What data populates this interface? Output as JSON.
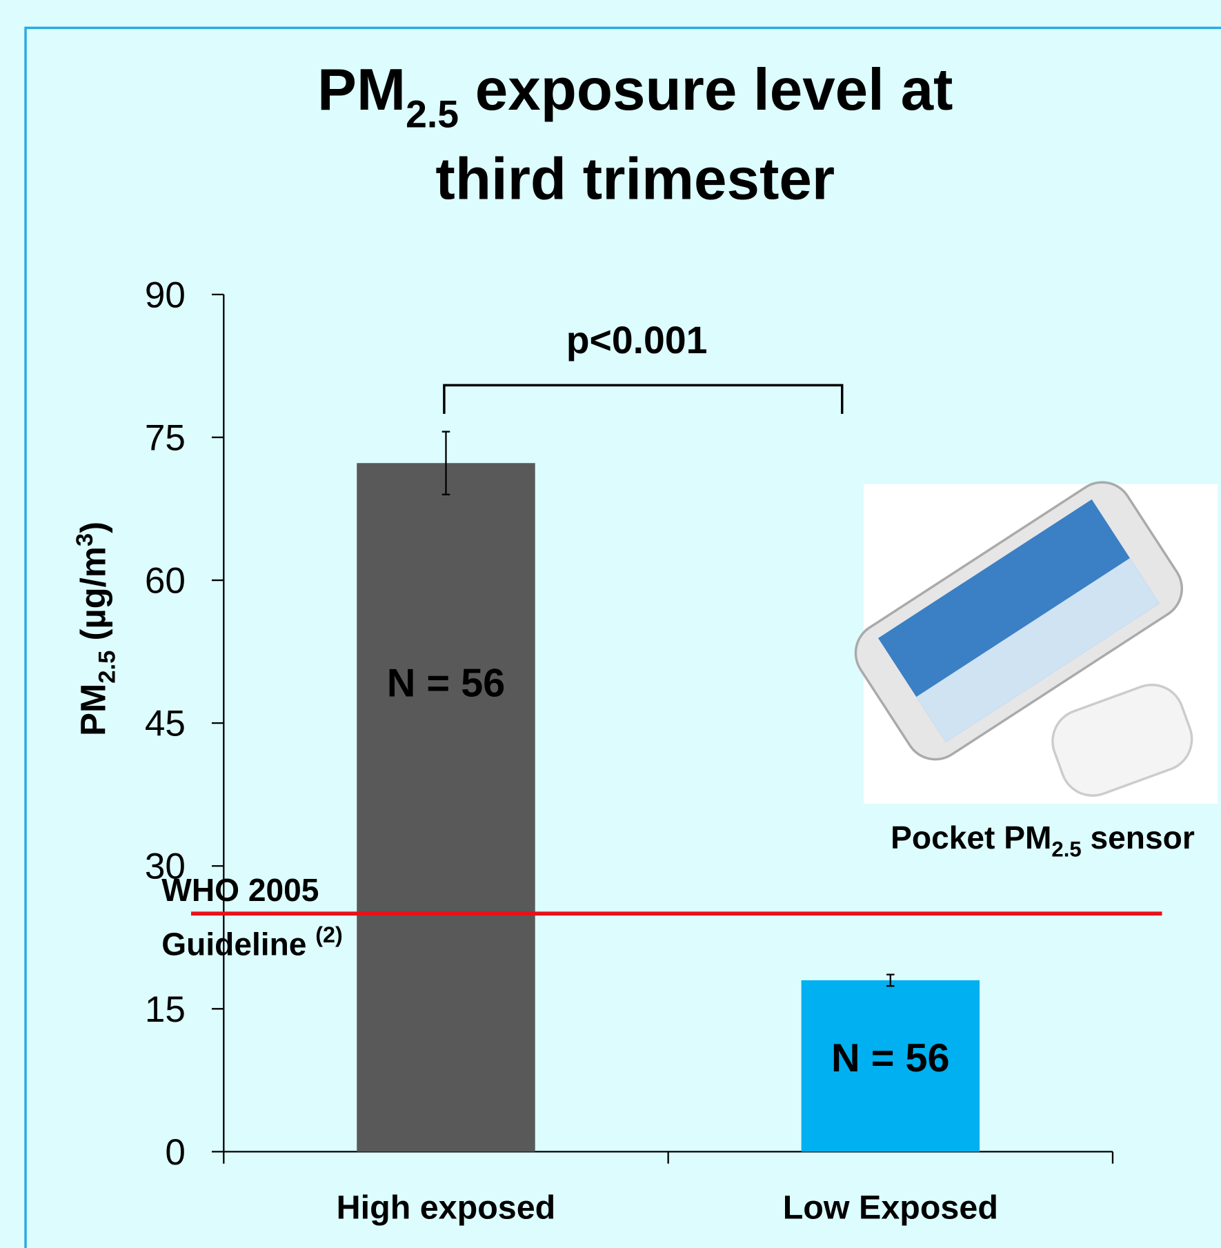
{
  "chart_data": {
    "type": "bar",
    "title": {
      "line1_main": "PM",
      "line1_sub": "2.5",
      "line1_rest": " exposure level at",
      "line2": "third trimester"
    },
    "y_label": {
      "main": "PM",
      "sub": "2.5",
      "rest": " (µg/m",
      "sup": "3",
      "end": ")"
    },
    "categories": [
      "High exposed",
      "Low Exposed"
    ],
    "values": [
      72.3,
      18.0
    ],
    "errors": [
      3.3,
      0.6
    ],
    "colors": [
      "#595959",
      "#00b0f0"
    ],
    "bar_labels": [
      "N = 56",
      "N = 56"
    ],
    "ylim": [
      0,
      90
    ],
    "yticks": [
      0,
      15,
      30,
      45,
      60,
      75,
      90
    ],
    "significance": "p<0.001",
    "reference_line": {
      "value": 25,
      "color": "#e8101a",
      "label_line1": "WHO 2005",
      "label_line2": "Guideline ",
      "label_sup": "(2)"
    },
    "image_caption": {
      "main": "Pocket PM",
      "sub": "2.5",
      "rest": " sensor"
    }
  }
}
